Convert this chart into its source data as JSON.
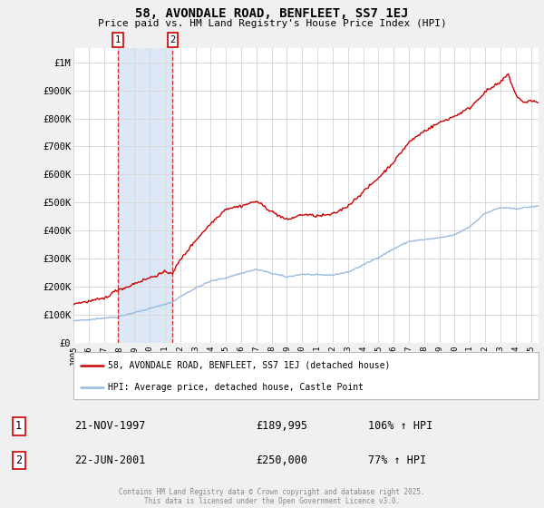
{
  "title": "58, AVONDALE ROAD, BENFLEET, SS7 1EJ",
  "subtitle": "Price paid vs. HM Land Registry's House Price Index (HPI)",
  "background_color": "#f0f0f0",
  "plot_background": "#ffffff",
  "grid_color": "#d8d8d8",
  "red_color": "#cc0000",
  "blue_color": "#99bbdd",
  "shade_color": "#dce8f5",
  "annotation_bg": "#ffffff",
  "ylim": [
    0,
    1050000
  ],
  "yticks": [
    0,
    100000,
    200000,
    300000,
    400000,
    500000,
    600000,
    700000,
    800000,
    900000,
    1000000
  ],
  "ytick_labels": [
    "£0",
    "£100K",
    "£200K",
    "£300K",
    "£400K",
    "£500K",
    "£600K",
    "£700K",
    "£800K",
    "£900K",
    "£1M"
  ],
  "legend_label_red": "58, AVONDALE ROAD, BENFLEET, SS7 1EJ (detached house)",
  "legend_label_blue": "HPI: Average price, detached house, Castle Point",
  "sale1_label": "1",
  "sale1_date": "21-NOV-1997",
  "sale1_price": "£189,995",
  "sale1_hpi": "106% ↑ HPI",
  "sale1_x": 1997.9,
  "sale2_label": "2",
  "sale2_date": "22-JUN-2001",
  "sale2_price": "£250,000",
  "sale2_hpi": "77% ↑ HPI",
  "sale2_x": 2001.5,
  "footer": "Contains HM Land Registry data © Crown copyright and database right 2025.\nThis data is licensed under the Open Government Licence v3.0.",
  "xmin": 1995,
  "xmax": 2025.5,
  "xtick_years": [
    1995,
    1996,
    1997,
    1998,
    1999,
    2000,
    2001,
    2002,
    2003,
    2004,
    2005,
    2006,
    2007,
    2008,
    2009,
    2010,
    2011,
    2012,
    2013,
    2014,
    2015,
    2016,
    2017,
    2018,
    2019,
    2020,
    2021,
    2022,
    2023,
    2024,
    2025
  ]
}
